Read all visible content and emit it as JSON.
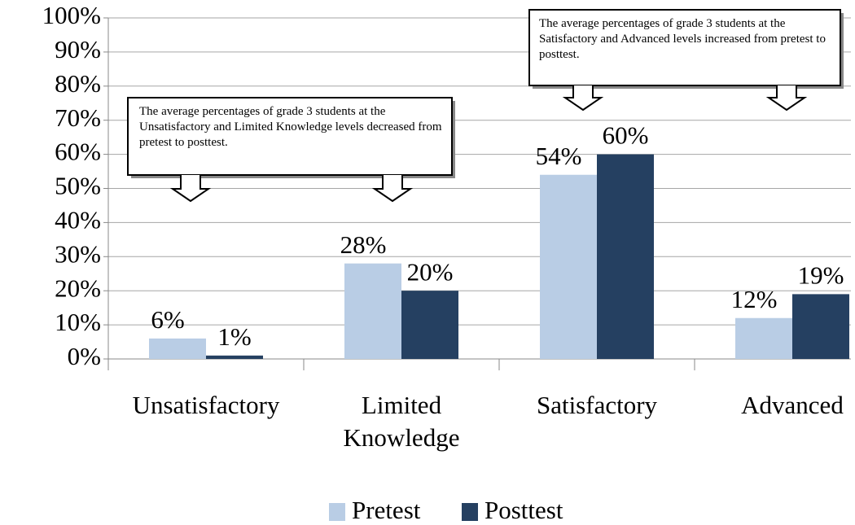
{
  "chart_data": {
    "type": "bar",
    "categories": [
      "Unsatisfactory",
      "Limited Knowledge",
      "Satisfactory",
      "Advanced"
    ],
    "series": [
      {
        "name": "Pretest",
        "color": "#b9cde5",
        "values": [
          6,
          28,
          54,
          12
        ],
        "value_labels": [
          "6%",
          "28%",
          "54%",
          "12%"
        ]
      },
      {
        "name": "Posttest",
        "color": "#254061",
        "values": [
          1,
          20,
          60,
          19
        ],
        "value_labels": [
          "1%",
          "20%",
          "60%",
          "19%"
        ]
      }
    ],
    "ylim": [
      0,
      100
    ],
    "yticks": [
      {
        "value": 0,
        "label": "0%"
      },
      {
        "value": 10,
        "label": "10%"
      },
      {
        "value": 20,
        "label": "20%"
      },
      {
        "value": 30,
        "label": "30%"
      },
      {
        "value": 40,
        "label": "40%"
      },
      {
        "value": 50,
        "label": "50%"
      },
      {
        "value": 60,
        "label": "60%"
      },
      {
        "value": 70,
        "label": "70%"
      },
      {
        "value": 80,
        "label": "80%"
      },
      {
        "value": 90,
        "label": "90%"
      },
      {
        "value": 100,
        "label": "100%"
      }
    ],
    "grid": true,
    "legend": "bottom",
    "annotations": [
      "The average percentages of grade 3 students at the Unsatisfactory and Limited Knowledge levels decreased from pretest to posttest.",
      "The average percentages of grade 3 students at the Satisfactory and Advanced levels increased from pretest to posttest."
    ]
  }
}
